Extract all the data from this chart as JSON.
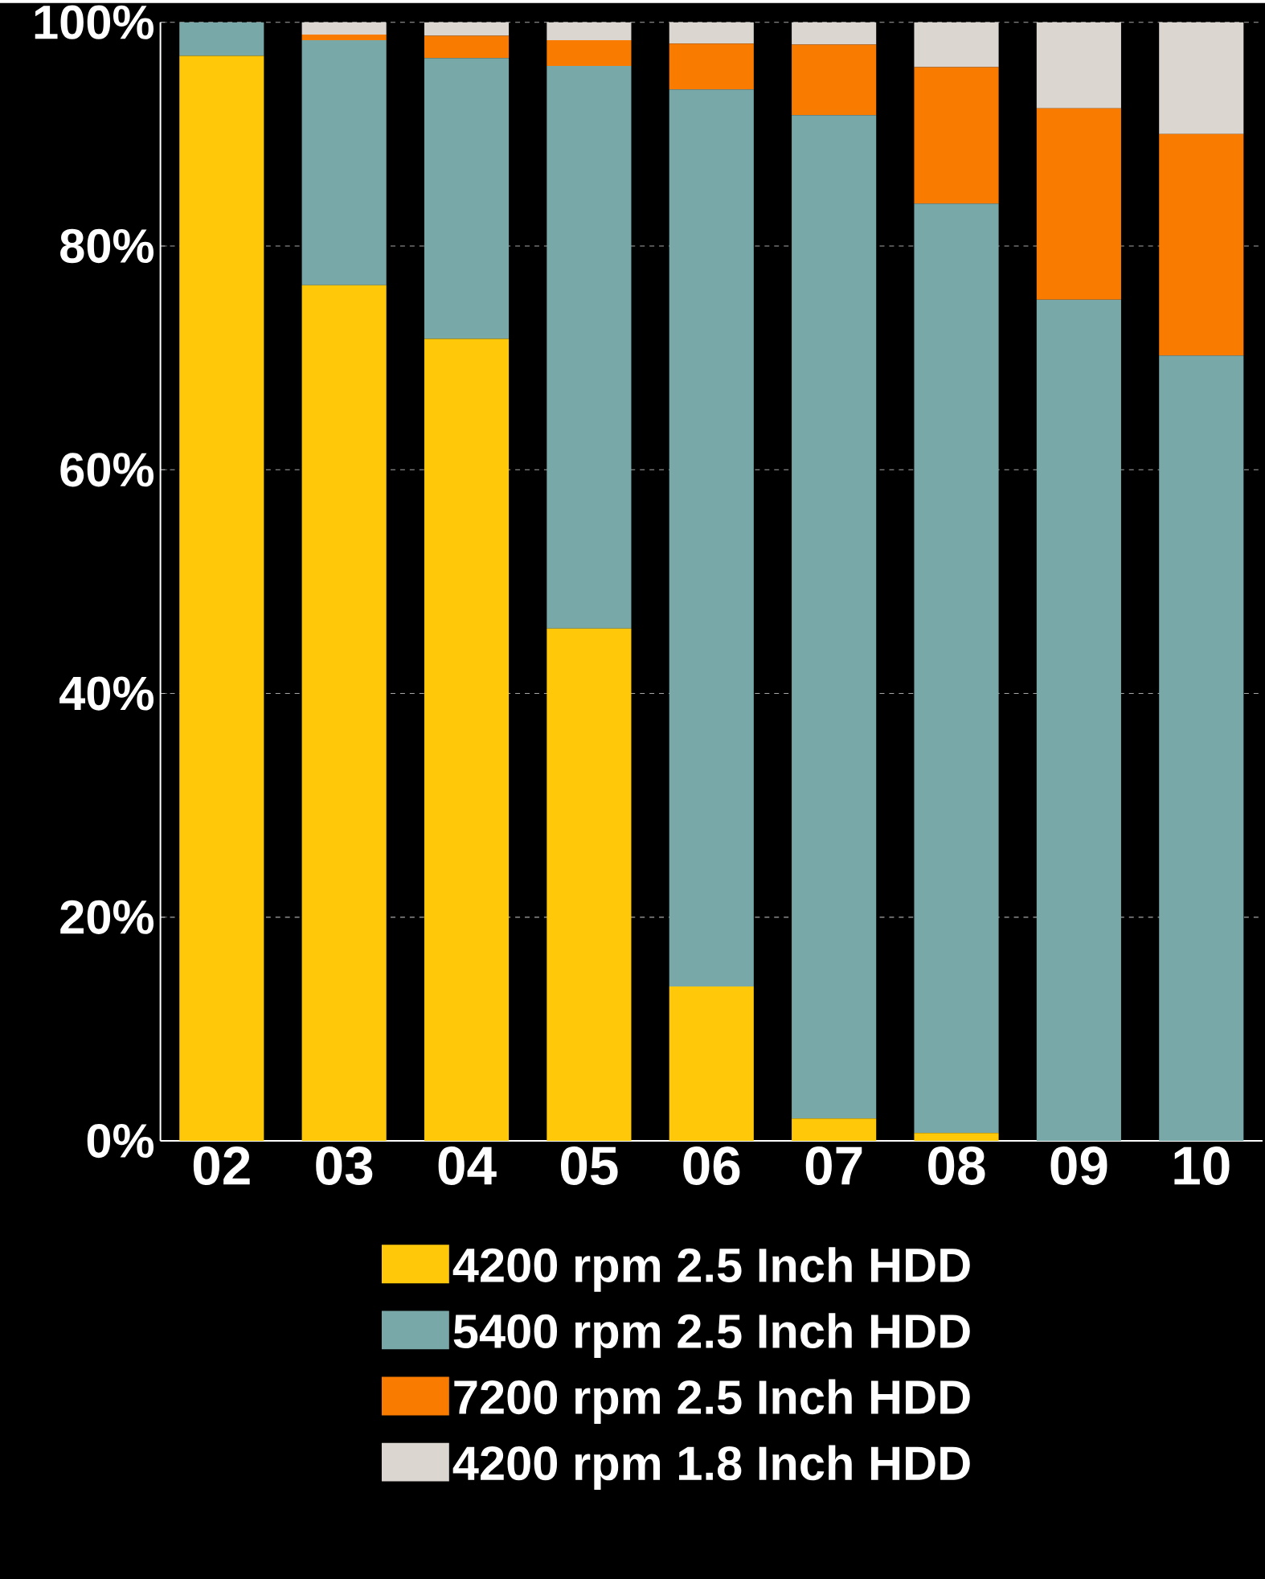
{
  "chart_data": {
    "type": "bar",
    "stacked": true,
    "categories": [
      "02",
      "03",
      "04",
      "05",
      "06",
      "07",
      "08",
      "09",
      "10"
    ],
    "series": [
      {
        "name": "4200 rpm 2.5 Inch HDD",
        "color": "#ffc90a",
        "values": [
          97,
          76.5,
          71.7,
          45.8,
          13.8,
          2.0,
          0.7,
          0,
          0
        ]
      },
      {
        "name": "5400 rpm 2.5 Inch HDD",
        "color": "#78a9a8",
        "values": [
          3,
          21.9,
          25.1,
          50.3,
          80.2,
          89.7,
          83.1,
          75.2,
          70.2
        ]
      },
      {
        "name": "7200 rpm 2.5 Inch HDD",
        "color": "#f97c00",
        "values": [
          0,
          0.5,
          2.0,
          2.3,
          4.1,
          6.3,
          12.2,
          17.1,
          19.8
        ]
      },
      {
        "name": "4200 rpm 1.8 Inch HDD",
        "color": "#dbd6d0",
        "values": [
          0,
          1.1,
          1.2,
          1.6,
          1.9,
          2.0,
          4.0,
          7.7,
          10.0
        ]
      }
    ],
    "ylim": [
      0,
      100
    ],
    "yticks": [
      {
        "value": 0,
        "label": "0%"
      },
      {
        "value": 20,
        "label": "20%"
      },
      {
        "value": 40,
        "label": "40%"
      },
      {
        "value": 60,
        "label": "60%"
      },
      {
        "value": 80,
        "label": "80%"
      },
      {
        "value": 100,
        "label": "100%"
      }
    ],
    "grid": "y",
    "legend": "bottom"
  }
}
